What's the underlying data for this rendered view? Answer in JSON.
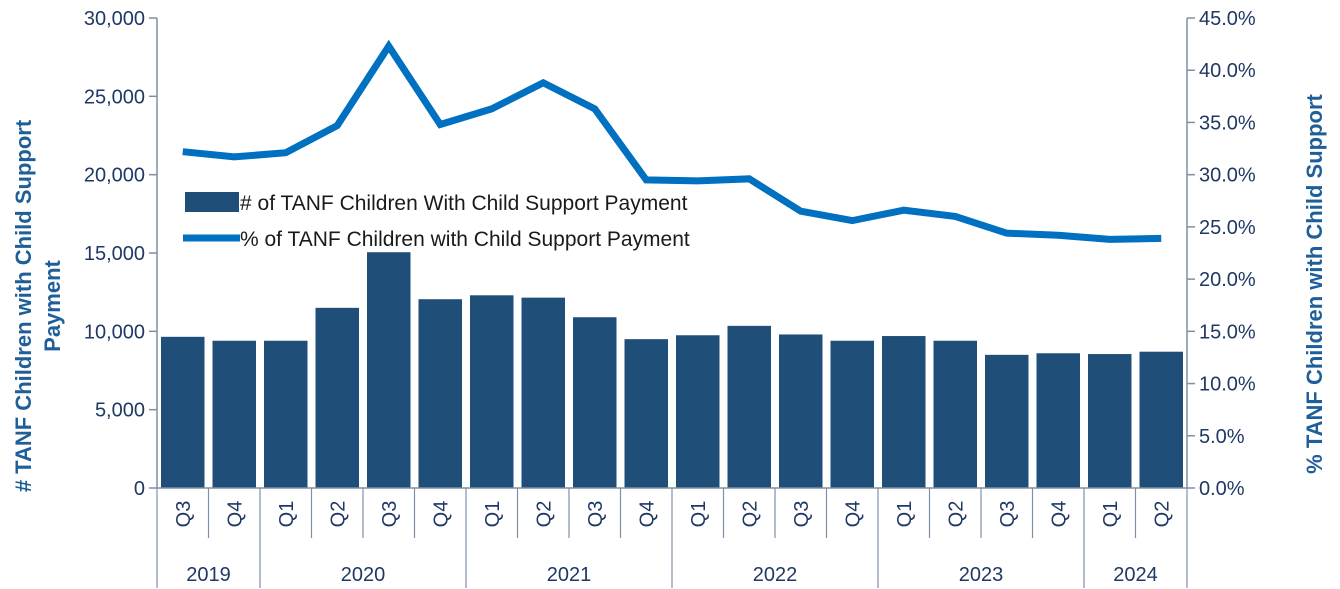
{
  "chart_data": {
    "type": "bar+line",
    "categories": [
      "Q3",
      "Q4",
      "Q1",
      "Q2",
      "Q3",
      "Q4",
      "Q1",
      "Q2",
      "Q3",
      "Q4",
      "Q1",
      "Q2",
      "Q3",
      "Q4",
      "Q1",
      "Q2",
      "Q3",
      "Q4",
      "Q1",
      "Q2"
    ],
    "years": [
      {
        "label": "2019",
        "start": 0,
        "span": 2
      },
      {
        "label": "2020",
        "start": 2,
        "span": 4
      },
      {
        "label": "2021",
        "start": 6,
        "span": 4
      },
      {
        "label": "2022",
        "start": 10,
        "span": 4
      },
      {
        "label": "2023",
        "start": 14,
        "span": 4
      },
      {
        "label": "2024",
        "start": 18,
        "span": 2
      }
    ],
    "series": [
      {
        "name": "# of TANF Children With Child Support Payment",
        "type": "bar",
        "axis": "left",
        "color": "#1f4e79",
        "values": [
          9650,
          9400,
          9400,
          11500,
          15050,
          12050,
          12300,
          12150,
          10900,
          9500,
          9750,
          10350,
          9800,
          9400,
          9700,
          9400,
          8500,
          8600,
          8550,
          8700
        ]
      },
      {
        "name": "% of TANF Children with Child Support Payment",
        "type": "line",
        "axis": "right",
        "color": "#0070c0",
        "values": [
          32.2,
          31.7,
          32.1,
          34.7,
          42.3,
          34.8,
          36.3,
          38.8,
          36.3,
          29.5,
          29.4,
          29.6,
          26.5,
          25.6,
          26.6,
          26.0,
          24.4,
          24.2,
          23.8,
          23.9
        ]
      }
    ],
    "left_axis": {
      "label": "# TANF Children with Child Support Payment",
      "ylim": [
        0,
        30000
      ],
      "ticks": [
        "0",
        "5,000",
        "10,000",
        "15,000",
        "20,000",
        "25,000",
        "30,000"
      ],
      "tick_values": [
        0,
        5000,
        10000,
        15000,
        20000,
        25000,
        30000
      ]
    },
    "right_axis": {
      "label": "% TANF Children with Child Support",
      "ylim": [
        0,
        45
      ],
      "ticks": [
        "0.0%",
        "5.0%",
        "10.0%",
        "15.0%",
        "20.0%",
        "25.0%",
        "30.0%",
        "35.0%",
        "40.0%",
        "45.0%"
      ],
      "tick_values": [
        0,
        5,
        10,
        15,
        20,
        25,
        30,
        35,
        40,
        45
      ]
    },
    "legend_position": "center-left",
    "grid": false
  }
}
